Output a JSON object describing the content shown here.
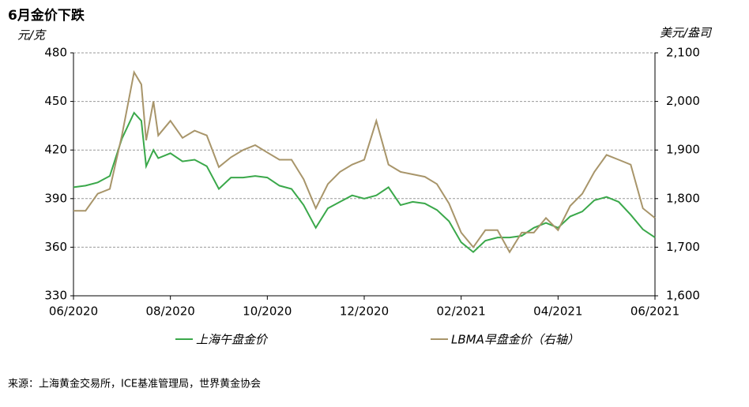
{
  "chart_data": {
    "type": "line",
    "title": "6月金价下跌",
    "ylabel": "元/克",
    "y2label": "美元/盎司",
    "source": "来源：上海黄金交易所，ICE基准管理局，世界黄金协会",
    "x": [
      0,
      0.25,
      0.5,
      0.75,
      1,
      1.25,
      1.4,
      1.5,
      1.65,
      1.75,
      2,
      2.25,
      2.5,
      2.75,
      3,
      3.25,
      3.5,
      3.75,
      4,
      4.25,
      4.5,
      4.75,
      5,
      5.25,
      5.5,
      5.75,
      6,
      6.25,
      6.5,
      6.75,
      7,
      7.25,
      7.5,
      7.75,
      8,
      8.25,
      8.5,
      8.75,
      9,
      9.25,
      9.5,
      9.75,
      10,
      10.25,
      10.5,
      10.75,
      11,
      11.25,
      11.5,
      11.75,
      12
    ],
    "xlim": [
      0,
      12
    ],
    "xticks": [
      {
        "value": 0,
        "label": "06/2020"
      },
      {
        "value": 2,
        "label": "08/2020"
      },
      {
        "value": 4,
        "label": "10/2020"
      },
      {
        "value": 6,
        "label": "12/2020"
      },
      {
        "value": 8,
        "label": "02/2021"
      },
      {
        "value": 10,
        "label": "04/2021"
      },
      {
        "value": 12,
        "label": "06/2021"
      }
    ],
    "ylim": [
      330,
      480
    ],
    "yticks": [
      330,
      360,
      390,
      420,
      450,
      480
    ],
    "y2lim": [
      1600,
      2100
    ],
    "y2ticks": [
      {
        "value": 1600,
        "label": "1,600"
      },
      {
        "value": 1700,
        "label": "1,700"
      },
      {
        "value": 1800,
        "label": "1,800"
      },
      {
        "value": 1900,
        "label": "1,900"
      },
      {
        "value": 2000,
        "label": "2,000"
      },
      {
        "value": 2100,
        "label": "2,100"
      }
    ],
    "grid": true,
    "series": [
      {
        "name": "上海午盘金价",
        "color": "#3aa84a",
        "values": [
          397,
          398,
          400,
          404,
          427,
          443,
          438,
          410,
          420,
          415,
          418,
          413,
          414,
          410,
          396,
          403,
          403,
          404,
          403,
          398,
          396,
          386,
          372,
          384,
          388,
          392,
          390,
          392,
          397,
          386,
          388,
          387,
          383,
          376,
          363,
          357,
          364,
          366,
          366,
          367,
          372,
          375,
          372,
          379,
          382,
          389,
          391,
          388,
          380,
          371,
          366
        ]
      },
      {
        "name": "LBMA早盘金价（右轴）",
        "color": "#a8956a",
        "axis": "y2",
        "values": [
          1775,
          1775,
          1810,
          1820,
          1930,
          2060,
          2035,
          1920,
          2000,
          1930,
          1960,
          1925,
          1940,
          1930,
          1865,
          1885,
          1900,
          1910,
          1895,
          1880,
          1880,
          1840,
          1780,
          1830,
          1855,
          1870,
          1880,
          1960,
          1870,
          1855,
          1850,
          1845,
          1830,
          1790,
          1730,
          1700,
          1735,
          1735,
          1690,
          1730,
          1730,
          1760,
          1735,
          1785,
          1810,
          1855,
          1890,
          1880,
          1870,
          1780,
          1760
        ]
      }
    ]
  }
}
